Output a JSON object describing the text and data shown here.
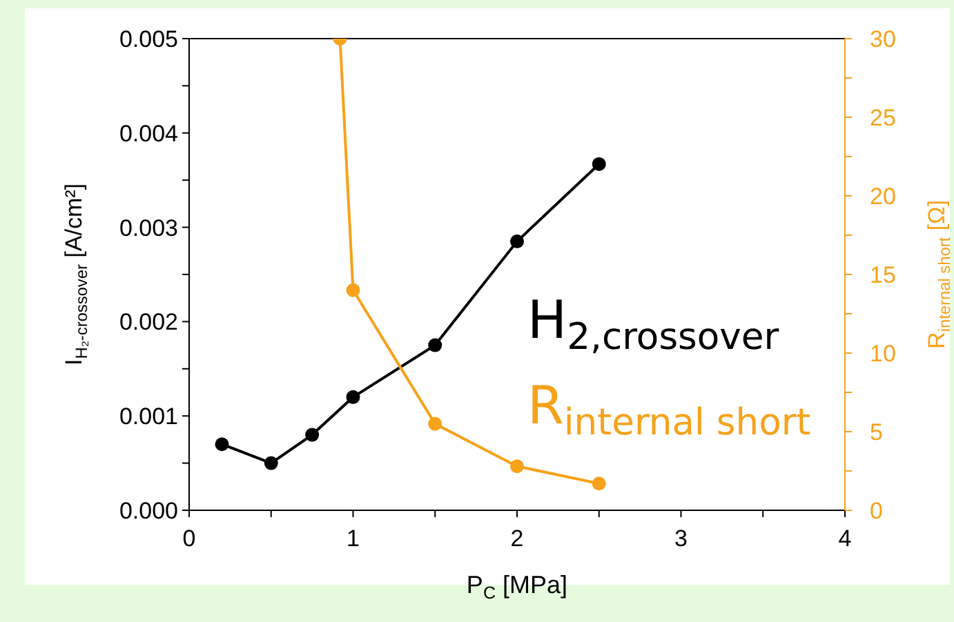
{
  "chart_data": {
    "type": "line",
    "xlabel": "P$_{C}$ [MPa]",
    "ylabel": "I$_{H₂-crossover}$ [A/cm²]",
    "y2label": "R$_{internal short}$ [Ω]",
    "series": [
      {
        "name": "H$_{2,crossover}$",
        "color": "#000000",
        "x": [
          0.2,
          0.5,
          0.75,
          1,
          1.5,
          2,
          2.5
        ],
        "values": [
          0.0007,
          0.0005,
          0.0008,
          0.0012,
          0.00175,
          0.00285,
          0.00367
        ]
      },
      {
        "name": "R$_{internal short}$",
        "color": "#f7a21b",
        "axis": "y2",
        "x": [
          0.92,
          1,
          1.5,
          2,
          2.5
        ],
        "values": [
          30,
          14,
          5.5,
          2.8,
          1.7
        ]
      }
    ],
    "xlim": [
      0,
      4
    ],
    "xticks": [
      0,
      {
        "value": 0.5,
        "label": null
      },
      1,
      {
        "value": 1.5,
        "label": null
      },
      2,
      {
        "value": 2.5,
        "label": null
      },
      3,
      {
        "value": 3.5,
        "label": null
      },
      4
    ],
    "ylim": [
      0,
      0.005
    ],
    "yticks": [
      {
        "value": 0,
        "label": "0.000"
      },
      {
        "value": 0.0005,
        "label": null
      },
      {
        "value": 0.001,
        "label": "0.001"
      },
      {
        "value": 0.0015,
        "label": null
      },
      {
        "value": 0.002,
        "label": "0.002"
      },
      {
        "value": 0.0025,
        "label": null
      },
      {
        "value": 0.003,
        "label": "0.003"
      },
      {
        "value": 0.0035,
        "label": null
      },
      {
        "value": 0.004,
        "label": "0.004"
      },
      {
        "value": 0.0045,
        "label": null
      },
      {
        "value": 0.005,
        "label": "0.005"
      }
    ],
    "y2lim": [
      0,
      30
    ],
    "y2ticks": [
      0,
      {
        "value": 2.5,
        "label": null
      },
      5,
      {
        "value": 7.5,
        "label": null
      },
      10,
      {
        "value": 12.5,
        "label": null
      },
      15,
      {
        "value": 17.5,
        "label": null
      },
      20,
      {
        "value": 22.5,
        "label": null
      },
      25,
      {
        "value": 27.5,
        "label": null
      },
      30
    ],
    "marker": "circle",
    "legend": "right",
    "grid": false
  }
}
